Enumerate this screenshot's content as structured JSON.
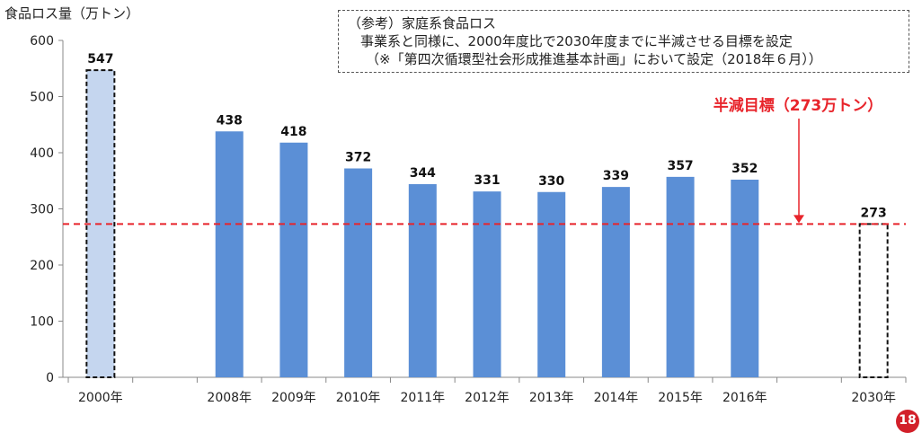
{
  "chart_data": {
    "type": "bar",
    "ylabel": "食品ロス量（万トン）",
    "ylim": [
      0,
      600
    ],
    "yticks": [
      0,
      100,
      200,
      300,
      400,
      500,
      600
    ],
    "categories": [
      "2000年",
      "",
      "2008年",
      "2009年",
      "2010年",
      "2011年",
      "2012年",
      "2013年",
      "2014年",
      "2015年",
      "2016年",
      "",
      "2030年"
    ],
    "values": [
      547,
      null,
      438,
      418,
      372,
      344,
      331,
      330,
      339,
      357,
      352,
      null,
      273
    ],
    "bar_styles": [
      "baseline",
      null,
      "actual",
      "actual",
      "actual",
      "actual",
      "actual",
      "actual",
      "actual",
      "actual",
      "actual",
      null,
      "target"
    ],
    "colors": {
      "actual": "#5b8fd6",
      "baseline": "#c5d6ef",
      "target_line": "#e8242b"
    },
    "target": {
      "value": 273,
      "label": "半減目標（273万トン）"
    },
    "grid": false
  },
  "note": {
    "lines": [
      "（参考）家庭系食品ロス",
      "事業系と同様に、2000年度比で2030年度までに半減させる目標を設定",
      "（※「第四次循環型社会形成推進基本計画」において設定（2018年６月））"
    ]
  },
  "page_number": "18"
}
